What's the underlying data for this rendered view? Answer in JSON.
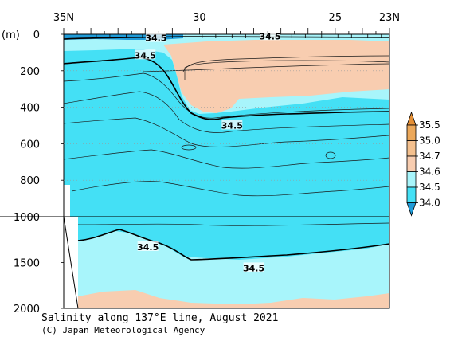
{
  "chart_data": {
    "type": "contour",
    "title": "Salinity along 137°E line, August 2021",
    "credit": "(C) Japan Meteorological Agency",
    "x_axis": {
      "range": [
        35,
        23
      ],
      "tick_labels": [
        {
          "value": 35,
          "label": "35N"
        },
        {
          "value": 30,
          "label": "30"
        },
        {
          "value": 25,
          "label": "25"
        },
        {
          "value": 23,
          "label": "23N"
        }
      ]
    },
    "y_axis": {
      "unit_label": "(m)",
      "upper_range": [
        0,
        1000
      ],
      "lower_range": [
        1000,
        2000
      ],
      "tick_labels": [
        {
          "depth": 0,
          "label": "0"
        },
        {
          "depth": 200,
          "label": "200"
        },
        {
          "depth": 400,
          "label": "400"
        },
        {
          "depth": 600,
          "label": "600"
        },
        {
          "depth": 800,
          "label": "800"
        },
        {
          "depth": 1000,
          "label": "1000"
        },
        {
          "depth": 1500,
          "label": "1500"
        },
        {
          "depth": 2000,
          "label": "2000"
        }
      ]
    },
    "contour_labels": [
      {
        "lat": 31.6,
        "depth": 20,
        "label": "34.5"
      },
      {
        "lat": 27.4,
        "depth": 10,
        "label": "34.5"
      },
      {
        "lat": 32.0,
        "depth": 115,
        "label": "34.5"
      },
      {
        "lat": 28.8,
        "depth": 500,
        "label": "34.5"
      },
      {
        "lat": 31.9,
        "depth": 1330,
        "label": "34.5"
      },
      {
        "lat": 28.0,
        "depth": 1560,
        "label": "34.5"
      }
    ],
    "color_scale": {
      "levels": [
        34.0,
        34.5,
        34.6,
        34.7,
        35.0,
        35.5
      ],
      "labels": [
        "34.0",
        "34.5",
        "34.6",
        "34.7",
        "35.0",
        "35.5"
      ],
      "colors": [
        "#1f9bd8",
        "#44e0f5",
        "#a8f5fb",
        "#f8cdb0",
        "#f4c08e",
        "#eca85a",
        "#e48f35"
      ]
    }
  }
}
